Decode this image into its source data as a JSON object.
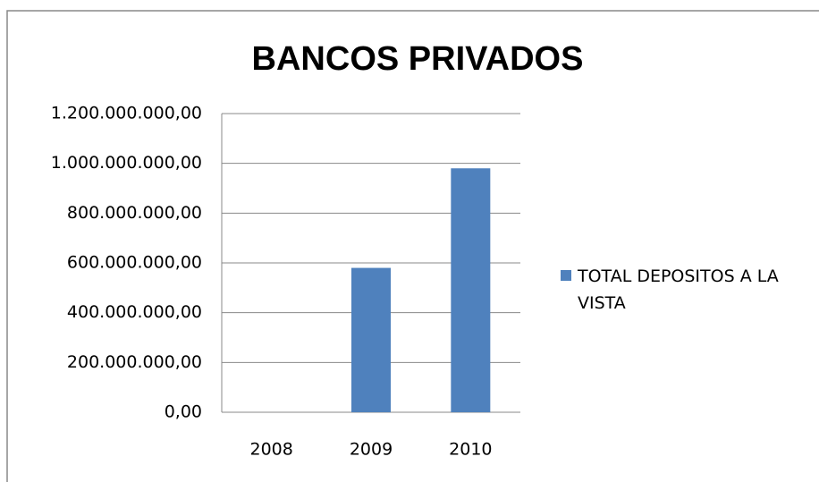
{
  "chart_data": {
    "type": "bar",
    "title": "BANCOS PRIVADOS",
    "categories": [
      "2008",
      "2009",
      "2010"
    ],
    "series": [
      {
        "name": "TOTAL DEPOSITOS A LA VISTA",
        "color": "#4f81bd",
        "values": [
          0,
          580000000,
          980000000
        ]
      }
    ],
    "ylim": [
      0,
      1200000000
    ],
    "yticks": [
      {
        "value": 0,
        "label": "0,00"
      },
      {
        "value": 200000000,
        "label": "200.000.000,00"
      },
      {
        "value": 400000000,
        "label": "400.000.000,00"
      },
      {
        "value": 600000000,
        "label": "600.000.000,00"
      },
      {
        "value": 800000000,
        "label": "800.000.000,00"
      },
      {
        "value": 1000000000,
        "label": "1.000.000.000,00"
      },
      {
        "value": 1200000000,
        "label": "1.200.000.000,00"
      }
    ],
    "grid": true,
    "legend": "right"
  }
}
